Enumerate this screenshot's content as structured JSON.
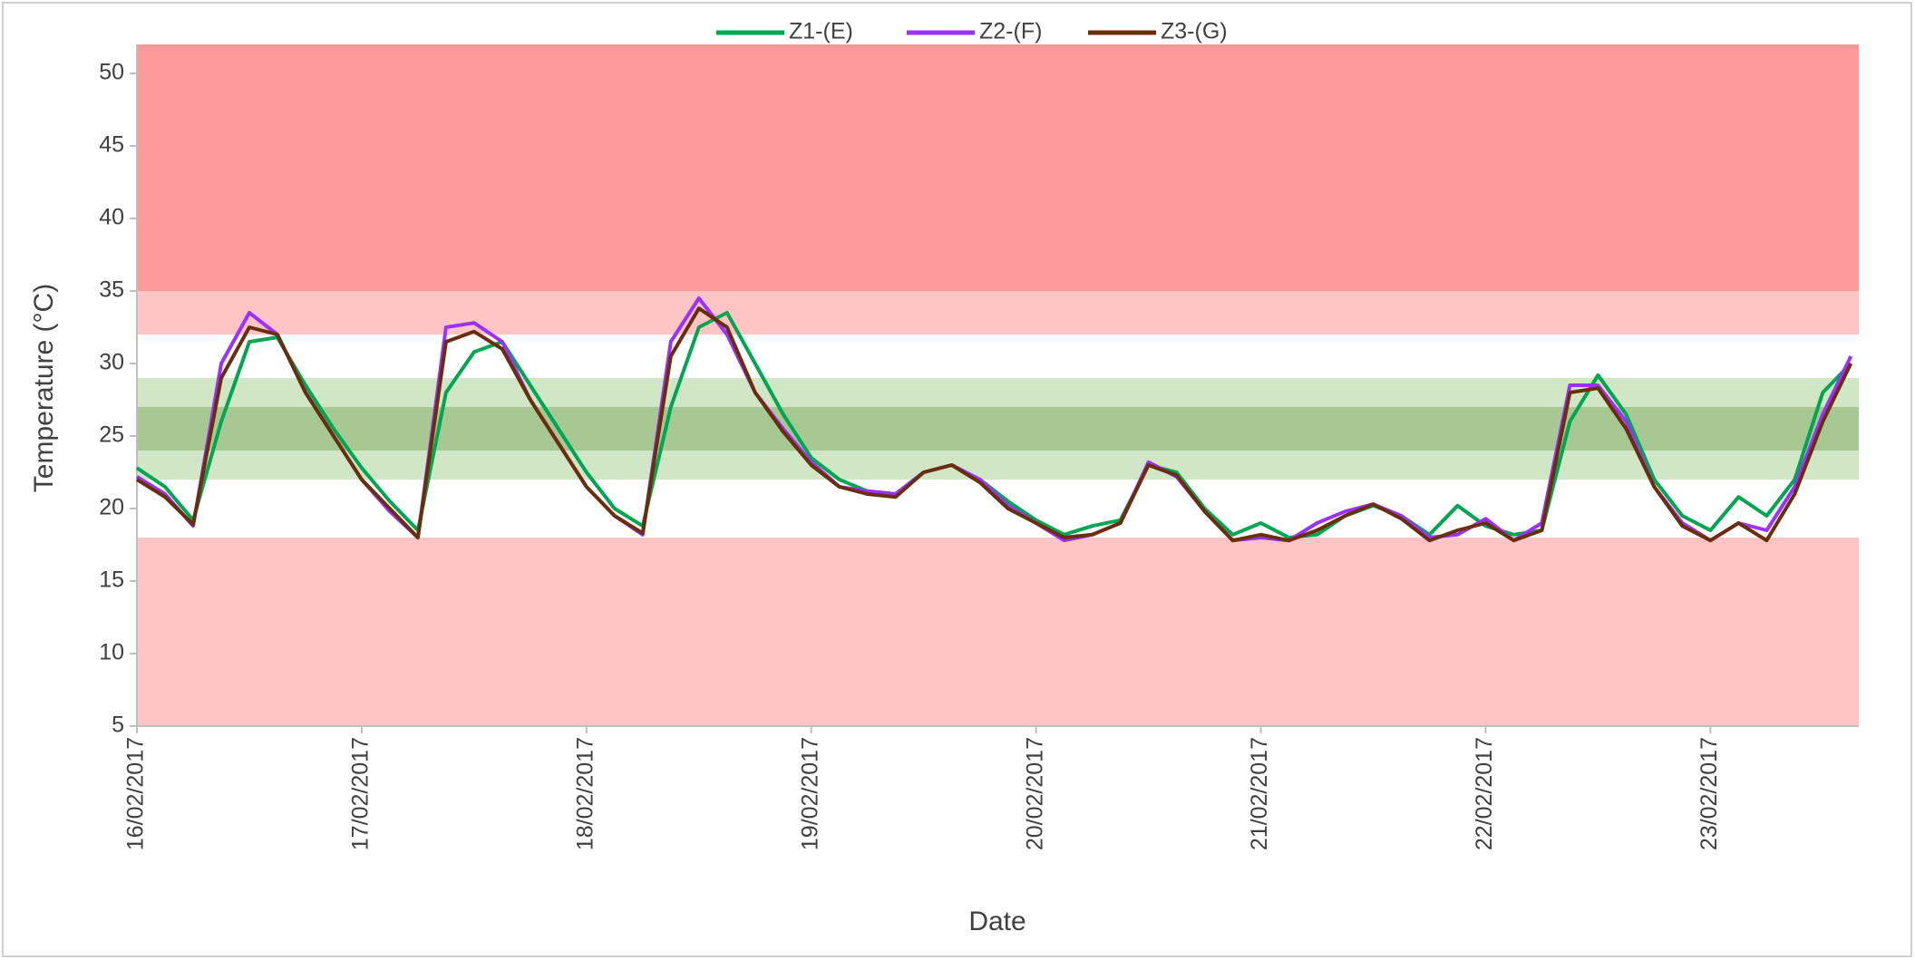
{
  "chart_data": {
    "type": "line",
    "x_label": "Date",
    "y_label": "Temperature (°C)",
    "xlim": [
      0,
      7.66
    ],
    "ylim": [
      5,
      52
    ],
    "xticks": [
      {
        "value": 0,
        "label": "16/02/2017"
      },
      {
        "value": 1,
        "label": "17/02/2017"
      },
      {
        "value": 2,
        "label": "18/02/2017"
      },
      {
        "value": 3,
        "label": "19/02/2017"
      },
      {
        "value": 4,
        "label": "20/02/2017"
      },
      {
        "value": 5,
        "label": "21/02/2017"
      },
      {
        "value": 6,
        "label": "22/02/2017"
      },
      {
        "value": 7,
        "label": "23/02/2017"
      }
    ],
    "yticks": [
      5,
      10,
      15,
      20,
      25,
      30,
      35,
      40,
      45,
      50
    ],
    "bands": [
      {
        "from": 35,
        "to": 52,
        "color": "#ff9999"
      },
      {
        "from": 32,
        "to": 35,
        "color": "#ffc5c5"
      },
      {
        "from": 5,
        "to": 18,
        "color": "#ffc5c5"
      },
      {
        "from": 22,
        "to": 29,
        "color": "#d0e6c4"
      },
      {
        "from": 24,
        "to": 27,
        "color": "#a7c892"
      }
    ],
    "legend": "top",
    "x": [
      0,
      0.125,
      0.25,
      0.375,
      0.5,
      0.625,
      0.75,
      0.875,
      1,
      1.125,
      1.25,
      1.375,
      1.5,
      1.625,
      1.75,
      1.875,
      2,
      2.125,
      2.25,
      2.375,
      2.5,
      2.625,
      2.75,
      2.875,
      3,
      3.125,
      3.25,
      3.375,
      3.5,
      3.625,
      3.75,
      3.875,
      4,
      4.125,
      4.25,
      4.375,
      4.5,
      4.625,
      4.75,
      4.875,
      5,
      5.125,
      5.25,
      5.375,
      5.5,
      5.625,
      5.75,
      5.875,
      6,
      6.125,
      6.25,
      6.375,
      6.5,
      6.625,
      6.75,
      6.875,
      7,
      7.125,
      7.25,
      7.375,
      7.5,
      7.625
    ],
    "series": [
      {
        "name": "Z1-(E)",
        "color": "#00a651",
        "values": [
          22.8,
          21.5,
          19.2,
          26,
          31.5,
          31.8,
          28.5,
          25.5,
          22.8,
          20.5,
          18.5,
          28,
          30.8,
          31.5,
          28.5,
          25.5,
          22.5,
          20,
          18.8,
          27,
          32.5,
          33.5,
          30,
          26.5,
          23.5,
          22,
          21.2,
          21,
          22.5,
          23,
          22,
          20.5,
          19.2,
          18.2,
          18.8,
          19.2,
          23,
          22.5,
          20,
          18.2,
          19,
          18,
          18.2,
          19.5,
          20.2,
          19.5,
          18.2,
          20.2,
          18.8,
          18.2,
          18.5,
          26,
          29.2,
          26.5,
          22,
          19.5,
          18.5,
          20.8,
          19.5,
          22,
          28,
          30
        ]
      },
      {
        "name": "Z2-(F)",
        "color": "#9b30ff",
        "values": [
          22.2,
          21,
          18.8,
          30,
          33.5,
          32,
          28,
          25,
          22,
          19.8,
          18,
          32.5,
          32.8,
          31.5,
          27.5,
          24.5,
          21.5,
          19.5,
          18.2,
          31.5,
          34.5,
          32,
          28,
          25.5,
          23.2,
          21.5,
          21.2,
          21,
          22.5,
          23,
          22,
          20.2,
          19,
          17.8,
          18.2,
          19,
          23.2,
          22.2,
          19.8,
          17.8,
          18,
          17.8,
          19,
          19.8,
          20.3,
          19.5,
          18,
          18.2,
          19.3,
          17.8,
          19,
          28.5,
          28.5,
          26,
          21.5,
          19,
          17.8,
          19,
          18.5,
          21.5,
          26.5,
          30.5
        ]
      },
      {
        "name": "Z3-(G)",
        "color": "#6b2e0a",
        "values": [
          22,
          20.8,
          18.9,
          29,
          32.5,
          32,
          28,
          25,
          22,
          20,
          18,
          31.5,
          32.2,
          31,
          27.5,
          24.5,
          21.5,
          19.5,
          18.3,
          30.5,
          33.8,
          32.5,
          28,
          25.3,
          23,
          21.5,
          21,
          20.8,
          22.5,
          23,
          21.8,
          20,
          19,
          18,
          18.2,
          19,
          23,
          22.3,
          19.8,
          17.8,
          18.2,
          17.8,
          18.5,
          19.5,
          20.3,
          19.3,
          17.8,
          18.5,
          19,
          17.8,
          18.5,
          28,
          28.3,
          25.5,
          21.5,
          18.8,
          17.8,
          19,
          17.8,
          21,
          26,
          30
        ]
      }
    ]
  }
}
